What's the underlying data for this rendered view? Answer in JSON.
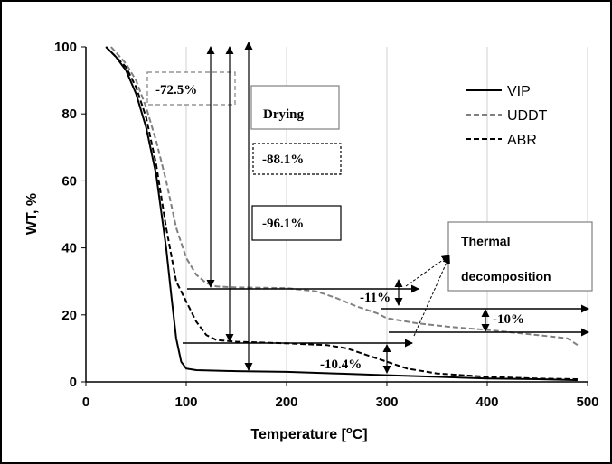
{
  "chart_data": {
    "type": "line",
    "xlabel": "Temperature [",
    "xlabel_sup": "o",
    "xlabel_end": "C]",
    "ylabel": "WT, %",
    "xlim": [
      0,
      500
    ],
    "ylim": [
      0,
      100
    ],
    "xticks": [
      0,
      100,
      200,
      300,
      400,
      500
    ],
    "yticks": [
      0,
      20,
      40,
      60,
      80,
      100
    ],
    "grid": "vertical",
    "legend_position": "top-right",
    "series": [
      {
        "name": "VIP",
        "color": "#000000",
        "style": "solid",
        "x": [
          20,
          30,
          40,
          50,
          60,
          70,
          80,
          85,
          90,
          95,
          100,
          110,
          150,
          200,
          250,
          300,
          350,
          400,
          450,
          490
        ],
        "y": [
          100,
          97,
          93,
          86,
          76,
          62,
          40,
          26,
          13,
          6,
          4,
          3.5,
          3.2,
          3,
          2.5,
          2,
          1.5,
          1,
          0.8,
          0.5
        ]
      },
      {
        "name": "UDDT",
        "color": "#808080",
        "style": "dashed",
        "x": [
          25,
          40,
          50,
          60,
          70,
          80,
          90,
          100,
          110,
          120,
          130,
          150,
          200,
          230,
          250,
          270,
          290,
          300,
          330,
          360,
          400,
          450,
          480,
          490
        ],
        "y": [
          100,
          95,
          90,
          82,
          72,
          60,
          46,
          37,
          32,
          29.5,
          28.5,
          28.2,
          28,
          27,
          25,
          22.5,
          20.5,
          19,
          17.5,
          16.5,
          15.5,
          14,
          13,
          11
        ]
      },
      {
        "name": "ABR",
        "color": "#000000",
        "style": "dashed",
        "x": [
          20,
          40,
          50,
          60,
          70,
          80,
          90,
          100,
          110,
          120,
          130,
          150,
          200,
          240,
          260,
          280,
          300,
          320,
          350,
          400,
          450,
          490
        ],
        "y": [
          100,
          94,
          88,
          79,
          65,
          46,
          30,
          24,
          18,
          14,
          12.5,
          12,
          11.5,
          11,
          10,
          8,
          6,
          4,
          2.5,
          1.5,
          1,
          0.8
        ]
      }
    ],
    "annotations": {
      "loss_72": "-72.5%",
      "drying": "Drying",
      "loss_88": "-88.1%",
      "loss_96": "-96.1%",
      "thermal_1": "Thermal",
      "thermal_2": "decomposition",
      "loss_11": "-11%",
      "loss_10": "-10%",
      "loss_104": "-10.4%"
    }
  }
}
